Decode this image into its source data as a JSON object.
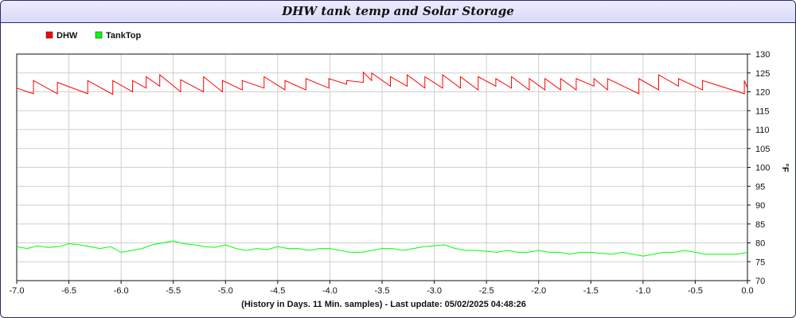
{
  "window": {
    "title": "DHW tank temp and Solar Storage"
  },
  "chart_data": {
    "type": "line",
    "title": "DHW tank temp and Solar Storage",
    "xlabel": "(History in Days. 11 Min. samples) - Last update: 05/02/2025 04:48:26",
    "ylabel": "°F",
    "xlim": [
      -7.0,
      0.0
    ],
    "ylim": [
      70,
      130
    ],
    "xticks": [
      "-7.0",
      "-6.5",
      "-6.0",
      "-5.5",
      "-5.0",
      "-4.5",
      "-4.0",
      "-3.5",
      "-3.0",
      "-2.5",
      "-2.0",
      "-1.5",
      "-1.0",
      "-0.5",
      "0.0"
    ],
    "yticks": [
      "70",
      "75",
      "80",
      "85",
      "90",
      "95",
      "100",
      "105",
      "110",
      "115",
      "120",
      "125",
      "130"
    ],
    "grid": true,
    "legend_position": "top-left",
    "series": [
      {
        "name": "DHW",
        "color": "#ff0000",
        "x": [
          -7.0,
          -6.84,
          -6.84,
          -6.61,
          -6.61,
          -6.32,
          -6.32,
          -6.08,
          -6.08,
          -5.89,
          -5.89,
          -5.76,
          -5.76,
          -5.63,
          -5.63,
          -5.43,
          -5.43,
          -5.21,
          -5.21,
          -5.03,
          -5.03,
          -4.84,
          -4.84,
          -4.63,
          -4.63,
          -4.43,
          -4.43,
          -4.23,
          -4.23,
          -4.01,
          -4.01,
          -3.84,
          -3.84,
          -3.68,
          -3.68,
          -3.6,
          -3.6,
          -3.42,
          -3.42,
          -3.26,
          -3.26,
          -3.09,
          -3.09,
          -2.92,
          -2.92,
          -2.75,
          -2.75,
          -2.58,
          -2.58,
          -2.41,
          -2.41,
          -2.26,
          -2.26,
          -2.09,
          -2.09,
          -1.94,
          -1.94,
          -1.79,
          -1.79,
          -1.64,
          -1.64,
          -1.47,
          -1.47,
          -1.34,
          -1.34,
          -1.04,
          -1.04,
          -0.85,
          -0.85,
          -0.66,
          -0.66,
          -0.43,
          -0.43,
          -0.03,
          -0.03,
          0.0
        ],
        "y": [
          121.0,
          119.5,
          123.0,
          119.5,
          122.5,
          119.5,
          123.0,
          119.3,
          123.0,
          120.0,
          123.0,
          121.0,
          124.0,
          121.5,
          124.5,
          120.0,
          123.2,
          120.0,
          124.0,
          120.0,
          123.0,
          120.5,
          123.0,
          121.0,
          124.0,
          120.5,
          123.0,
          120.5,
          123.5,
          121.0,
          123.5,
          122.0,
          123.0,
          122.5,
          125.2,
          123.0,
          125.0,
          121.5,
          124.0,
          121.5,
          124.5,
          121.0,
          124.0,
          121.0,
          124.5,
          121.0,
          124.0,
          120.5,
          124.0,
          121.5,
          123.5,
          121.0,
          124.0,
          120.5,
          123.5,
          120.5,
          123.5,
          120.5,
          123.5,
          120.5,
          123.5,
          121.5,
          123.5,
          120.5,
          123.5,
          119.5,
          123.5,
          120.5,
          124.5,
          121.5,
          123.5,
          120.5,
          123.0,
          119.5,
          123.0,
          121.0
        ]
      },
      {
        "name": "TankTop",
        "color": "#00ff00",
        "x": [
          -7.0,
          -6.9,
          -6.8,
          -6.7,
          -6.6,
          -6.5,
          -6.4,
          -6.3,
          -6.2,
          -6.1,
          -6.0,
          -5.9,
          -5.8,
          -5.7,
          -5.6,
          -5.5,
          -5.4,
          -5.3,
          -5.2,
          -5.1,
          -5.0,
          -4.9,
          -4.8,
          -4.7,
          -4.6,
          -4.5,
          -4.4,
          -4.3,
          -4.2,
          -4.1,
          -4.0,
          -3.9,
          -3.8,
          -3.7,
          -3.6,
          -3.5,
          -3.4,
          -3.3,
          -3.2,
          -3.1,
          -3.0,
          -2.9,
          -2.8,
          -2.7,
          -2.6,
          -2.5,
          -2.4,
          -2.3,
          -2.2,
          -2.1,
          -2.0,
          -1.9,
          -1.8,
          -1.7,
          -1.6,
          -1.5,
          -1.4,
          -1.3,
          -1.2,
          -1.1,
          -1.0,
          -0.9,
          -0.8,
          -0.7,
          -0.6,
          -0.5,
          -0.4,
          -0.3,
          -0.2,
          -0.1,
          0.0
        ],
        "y": [
          79.0,
          78.5,
          79.2,
          78.8,
          79.0,
          79.8,
          79.5,
          79.0,
          78.5,
          79.0,
          77.5,
          78.0,
          78.5,
          79.5,
          80.0,
          80.5,
          79.8,
          79.5,
          79.0,
          78.8,
          79.5,
          78.5,
          78.0,
          78.5,
          78.2,
          79.0,
          78.5,
          78.5,
          78.0,
          78.5,
          78.5,
          78.0,
          77.5,
          77.5,
          78.0,
          78.5,
          78.5,
          78.0,
          78.5,
          79.0,
          79.2,
          79.5,
          78.5,
          78.0,
          78.0,
          77.8,
          77.5,
          78.0,
          77.5,
          77.5,
          78.0,
          77.5,
          77.5,
          77.0,
          77.5,
          77.5,
          77.2,
          77.0,
          77.5,
          77.0,
          76.5,
          77.0,
          77.5,
          77.5,
          78.0,
          77.5,
          77.0,
          77.0,
          77.0,
          77.0,
          77.5
        ]
      }
    ]
  }
}
